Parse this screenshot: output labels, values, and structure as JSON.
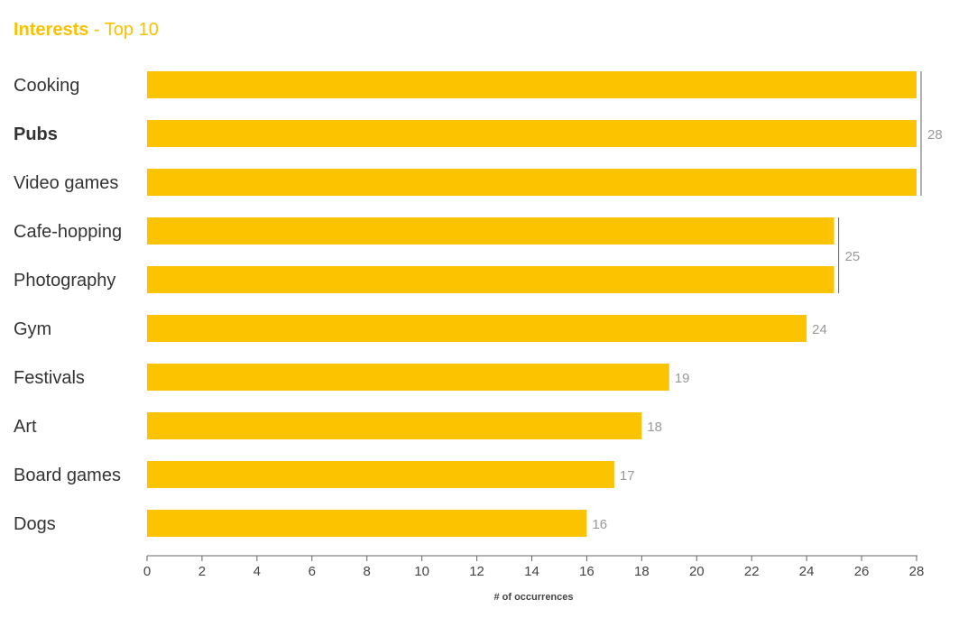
{
  "header": {
    "title_main": "Interests",
    "title_sep": " - ",
    "title_sub": "Top 10"
  },
  "colors": {
    "bar": "#FCC400",
    "accent": "#F9C100",
    "axis": "#666666",
    "value_label": "#999999"
  },
  "chart_data": {
    "type": "bar",
    "orientation": "horizontal",
    "title": "Interests - Top 10",
    "xlabel": "# of occurrences",
    "ylabel": "",
    "categories": [
      "Cooking",
      "Pubs",
      "Video games",
      "Cafe-hopping",
      "Photography",
      "Gym",
      "Festivals",
      "Art",
      "Board games",
      "Dogs"
    ],
    "highlighted_category": "Pubs",
    "values": [
      28,
      28,
      28,
      25,
      25,
      24,
      19,
      18,
      17,
      16
    ],
    "xlim": [
      0,
      28
    ],
    "xticks": [
      0,
      2,
      4,
      6,
      8,
      10,
      12,
      14,
      16,
      18,
      20,
      22,
      24,
      26,
      28
    ],
    "grid": false,
    "legend": "none",
    "value_groups": [
      {
        "categories": [
          "Cooking",
          "Pubs",
          "Video games"
        ],
        "label": "28"
      },
      {
        "categories": [
          "Cafe-hopping",
          "Photography"
        ],
        "label": "25"
      },
      {
        "categories": [
          "Gym"
        ],
        "label": "24"
      },
      {
        "categories": [
          "Festivals"
        ],
        "label": "19"
      },
      {
        "categories": [
          "Art"
        ],
        "label": "18"
      },
      {
        "categories": [
          "Board games"
        ],
        "label": "17"
      },
      {
        "categories": [
          "Dogs"
        ],
        "label": "16"
      }
    ]
  }
}
